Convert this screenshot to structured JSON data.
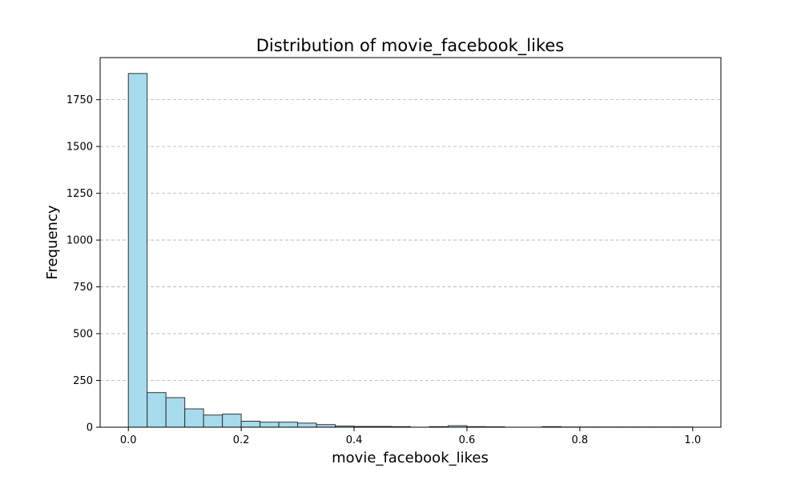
{
  "chart_data": {
    "type": "bar",
    "subtype": "histogram",
    "title": "Distribution of movie_facebook_likes",
    "xlabel": "movie_facebook_likes",
    "ylabel": "Frequency",
    "xlim": [
      -0.05,
      1.05
    ],
    "ylim": [
      0,
      1975
    ],
    "grid": "y-dashed",
    "bar_color": "#a6dbed",
    "edge_color": "#333333",
    "bin_width": 0.03333,
    "x_ticks": [
      0.0,
      0.2,
      0.4,
      0.6,
      0.8,
      1.0
    ],
    "x_tick_labels": [
      "0.0",
      "0.2",
      "0.4",
      "0.6",
      "0.8",
      "1.0"
    ],
    "y_ticks": [
      0,
      250,
      500,
      750,
      1000,
      1250,
      1500,
      1750
    ],
    "y_tick_labels": [
      "0",
      "250",
      "500",
      "750",
      "1000",
      "1250",
      "1500",
      "1750"
    ],
    "bins": [
      {
        "start": 0.0,
        "value": 1890
      },
      {
        "start": 0.03333,
        "value": 185
      },
      {
        "start": 0.06667,
        "value": 158
      },
      {
        "start": 0.1,
        "value": 98
      },
      {
        "start": 0.13333,
        "value": 65
      },
      {
        "start": 0.16667,
        "value": 70
      },
      {
        "start": 0.2,
        "value": 32
      },
      {
        "start": 0.23333,
        "value": 27
      },
      {
        "start": 0.26667,
        "value": 27
      },
      {
        "start": 0.3,
        "value": 22
      },
      {
        "start": 0.33333,
        "value": 14
      },
      {
        "start": 0.36667,
        "value": 6
      },
      {
        "start": 0.4,
        "value": 4
      },
      {
        "start": 0.43333,
        "value": 4
      },
      {
        "start": 0.46667,
        "value": 3
      },
      {
        "start": 0.5,
        "value": 0
      },
      {
        "start": 0.53333,
        "value": 3
      },
      {
        "start": 0.56667,
        "value": 8
      },
      {
        "start": 0.6,
        "value": 3
      },
      {
        "start": 0.63333,
        "value": 2
      },
      {
        "start": 0.66667,
        "value": 0
      },
      {
        "start": 0.7,
        "value": 0
      },
      {
        "start": 0.73333,
        "value": 3
      },
      {
        "start": 0.76667,
        "value": 1
      },
      {
        "start": 0.8,
        "value": 1
      },
      {
        "start": 0.83333,
        "value": 1
      },
      {
        "start": 0.86667,
        "value": 1
      },
      {
        "start": 0.9,
        "value": 1
      },
      {
        "start": 0.93333,
        "value": 1
      },
      {
        "start": 0.96667,
        "value": 1
      }
    ]
  }
}
